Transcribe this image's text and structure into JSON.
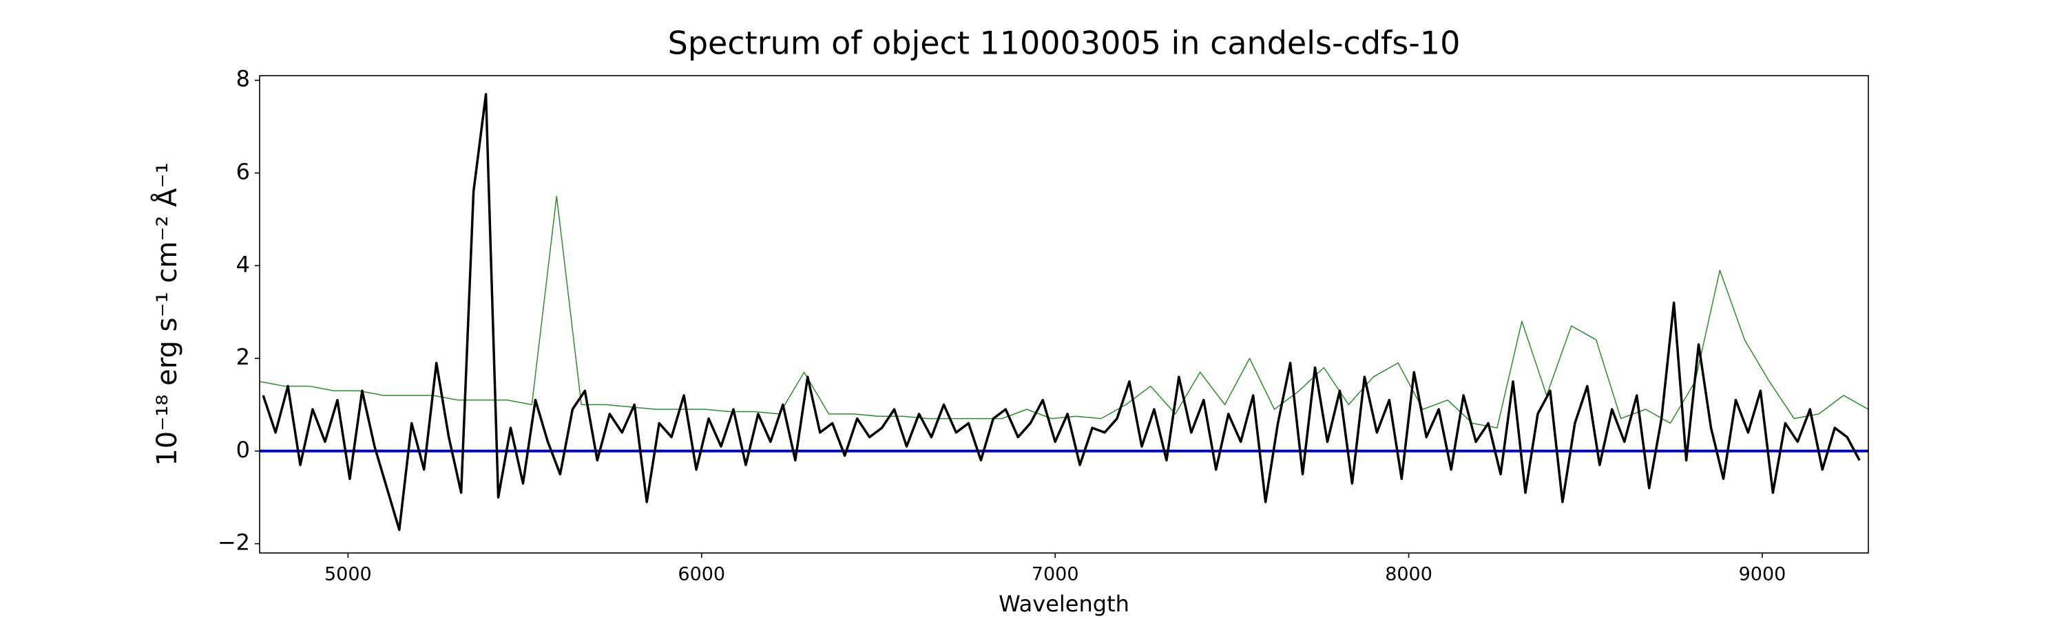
{
  "chart_data": {
    "type": "line",
    "title": "Spectrum of object 110003005 in candels-cdfs-10",
    "xlabel": "Wavelength",
    "ylabel": "10⁻¹⁸ erg s⁻¹ cm⁻² Å⁻¹",
    "xlim": [
      4750,
      9300
    ],
    "ylim": [
      -2.2,
      8.1
    ],
    "xticks": [
      5000,
      6000,
      7000,
      8000,
      9000
    ],
    "yticks": [
      {
        "value": -2,
        "label": "−2"
      },
      0,
      2,
      4,
      6,
      8
    ],
    "series": [
      {
        "color": "#2e8b2e",
        "width": 1.5,
        "x": [
          4750,
          4820,
          4890,
          4960,
          5030,
          5100,
          5170,
          5240,
          5310,
          5380,
          5450,
          5520,
          5590,
          5660,
          5730,
          5800,
          5870,
          5940,
          6010,
          6080,
          6150,
          6220,
          6290,
          6360,
          6430,
          6500,
          6570,
          6640,
          6710,
          6780,
          6850,
          6920,
          6990,
          7060,
          7130,
          7200,
          7270,
          7340,
          7410,
          7480,
          7550,
          7620,
          7690,
          7760,
          7830,
          7900,
          7970,
          8040,
          8110,
          8180,
          8250,
          8320,
          8390,
          8460,
          8530,
          8600,
          8670,
          8740,
          8810,
          8880,
          8950,
          9020,
          9090,
          9160,
          9230,
          9300
        ],
        "values": [
          1.5,
          1.4,
          1.4,
          1.3,
          1.3,
          1.2,
          1.2,
          1.2,
          1.1,
          1.1,
          1.1,
          1.0,
          5.5,
          1.0,
          1.0,
          0.95,
          0.9,
          0.9,
          0.9,
          0.85,
          0.85,
          0.8,
          1.7,
          0.8,
          0.8,
          0.75,
          0.75,
          0.7,
          0.7,
          0.7,
          0.7,
          0.9,
          0.7,
          0.75,
          0.7,
          1.0,
          1.4,
          0.8,
          1.7,
          1.0,
          2.0,
          0.9,
          1.3,
          1.8,
          1.0,
          1.6,
          1.9,
          0.9,
          1.1,
          0.6,
          0.5,
          2.8,
          1.2,
          2.7,
          2.4,
          0.7,
          0.9,
          0.6,
          1.5,
          3.9,
          2.4,
          1.5,
          0.7,
          0.8,
          1.2,
          0.9
        ]
      },
      {
        "color": "#0000cc",
        "width": 4,
        "x": [
          4750,
          9300
        ],
        "values": [
          0,
          0
        ]
      },
      {
        "color": "#000000",
        "width": 3.5,
        "x": [
          4760,
          4795,
          4830,
          4865,
          4900,
          4935,
          4970,
          5005,
          5040,
          5075,
          5110,
          5145,
          5180,
          5215,
          5250,
          5285,
          5320,
          5355,
          5390,
          5425,
          5460,
          5495,
          5530,
          5565,
          5600,
          5635,
          5670,
          5705,
          5740,
          5775,
          5810,
          5845,
          5880,
          5915,
          5950,
          5985,
          6020,
          6055,
          6090,
          6125,
          6160,
          6195,
          6230,
          6265,
          6300,
          6335,
          6370,
          6405,
          6440,
          6475,
          6510,
          6545,
          6580,
          6615,
          6650,
          6685,
          6720,
          6755,
          6790,
          6825,
          6860,
          6895,
          6930,
          6965,
          7000,
          7035,
          7070,
          7105,
          7140,
          7175,
          7210,
          7245,
          7280,
          7315,
          7350,
          7385,
          7420,
          7455,
          7490,
          7525,
          7560,
          7595,
          7630,
          7665,
          7700,
          7735,
          7770,
          7805,
          7840,
          7875,
          7910,
          7945,
          7980,
          8015,
          8050,
          8085,
          8120,
          8155,
          8190,
          8225,
          8260,
          8295,
          8330,
          8365,
          8400,
          8435,
          8470,
          8505,
          8540,
          8575,
          8610,
          8645,
          8680,
          8715,
          8750,
          8785,
          8820,
          8855,
          8890,
          8925,
          8960,
          8995,
          9030,
          9065,
          9100,
          9135,
          9170,
          9205,
          9240,
          9275
        ],
        "values": [
          1.2,
          0.4,
          1.4,
          -0.3,
          0.9,
          0.2,
          1.1,
          -0.6,
          1.3,
          0.1,
          -0.8,
          -1.7,
          0.6,
          -0.4,
          1.9,
          0.3,
          -0.9,
          5.6,
          7.7,
          -1.0,
          0.5,
          -0.7,
          1.1,
          0.2,
          -0.5,
          0.9,
          1.3,
          -0.2,
          0.8,
          0.4,
          1.0,
          -1.1,
          0.6,
          0.3,
          1.2,
          -0.4,
          0.7,
          0.1,
          0.9,
          -0.3,
          0.8,
          0.2,
          1.0,
          -0.2,
          1.6,
          0.4,
          0.6,
          -0.1,
          0.7,
          0.3,
          0.5,
          0.9,
          0.1,
          0.8,
          0.3,
          1.0,
          0.4,
          0.6,
          -0.2,
          0.7,
          0.9,
          0.3,
          0.6,
          1.1,
          0.2,
          0.8,
          -0.3,
          0.5,
          0.4,
          0.7,
          1.5,
          0.1,
          0.9,
          -0.2,
          1.6,
          0.4,
          1.1,
          -0.4,
          0.8,
          0.2,
          1.2,
          -1.1,
          0.6,
          1.9,
          -0.5,
          1.8,
          0.2,
          1.3,
          -0.7,
          1.6,
          0.4,
          1.1,
          -0.6,
          1.7,
          0.3,
          0.9,
          -0.4,
          1.2,
          0.2,
          0.6,
          -0.5,
          1.5,
          -0.9,
          0.8,
          1.3,
          -1.1,
          0.6,
          1.4,
          -0.3,
          0.9,
          0.2,
          1.2,
          -0.8,
          0.7,
          3.2,
          -0.2,
          2.3,
          0.5,
          -0.6,
          1.1,
          0.4,
          1.3,
          -0.9,
          0.6,
          0.2,
          0.9,
          -0.4,
          0.5,
          0.3,
          -0.2
        ]
      }
    ]
  }
}
